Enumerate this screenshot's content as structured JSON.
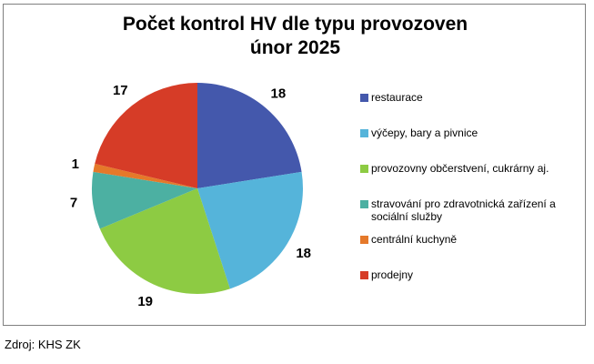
{
  "title": {
    "line1": "Počet kontrol HV dle typu provozoven",
    "line2": "únor 2025"
  },
  "source": "Zdroj: KHS ZK",
  "chart_data": {
    "type": "pie",
    "title": "Počet kontrol HV dle typu provozoven únor 2025",
    "start_angle_deg": 0,
    "direction": "clockwise",
    "legend_position": "right",
    "data_labels": "outside-values",
    "total": 80,
    "slices": [
      {
        "label": "restaurace",
        "value": 18,
        "color": "#4458AC"
      },
      {
        "label": "výčepy, bary a pivnice",
        "value": 18,
        "color": "#55B4DA"
      },
      {
        "label": "provozovny občerstvení, cukrárny aj.",
        "value": 19,
        "color": "#8DCB43"
      },
      {
        "label": "stravování pro zdravotnická zařízení a sociální služby",
        "value": 7,
        "color": "#4CB0A2"
      },
      {
        "label": "centrální kuchyně",
        "value": 1,
        "color": "#E5792A"
      },
      {
        "label": "prodejny",
        "value": 17,
        "color": "#D63C27"
      }
    ]
  }
}
